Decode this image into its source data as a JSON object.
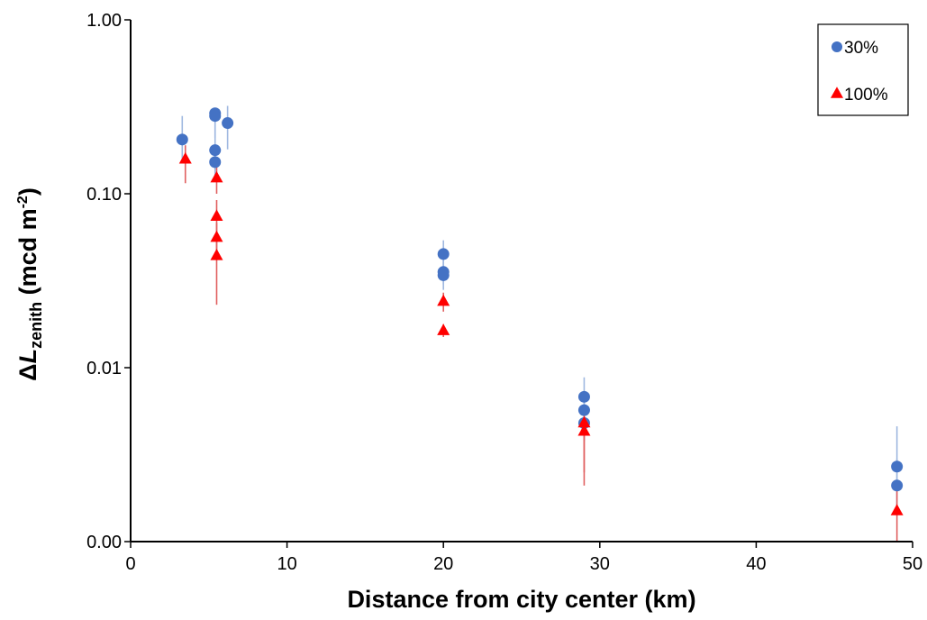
{
  "chart_data": {
    "type": "scatter",
    "title": "",
    "xlabel": "Distance from city center (km)",
    "ylabel": {
      "prefix": "Δ",
      "symbol": "L",
      "subscript": "zenith",
      "unit_open": " (mcd m",
      "unit_sup": "-2",
      "unit_close": ")"
    },
    "x_scale": "linear",
    "y_scale": "log",
    "xlim": [
      0,
      50
    ],
    "ylim": [
      0.001,
      1
    ],
    "x_ticks": [
      0,
      10,
      20,
      30,
      40,
      50
    ],
    "y_ticks": [
      {
        "value": 0.001,
        "label": "0.00"
      },
      {
        "value": 0.01,
        "label": "0.01"
      },
      {
        "value": 0.1,
        "label": "0.10"
      },
      {
        "value": 1,
        "label": "1.00"
      }
    ],
    "grid": false,
    "legend_position": "top-right",
    "series": [
      {
        "name": "30%",
        "marker": "circle",
        "color": "#4472C4",
        "error_color": "#9FB8E0",
        "points": [
          {
            "x": 3.3,
            "y": 0.205,
            "err_low": 0.15,
            "err_high": 0.28
          },
          {
            "x": 5.4,
            "y": 0.29,
            "err_low": 0.22,
            "err_high": 0.31
          },
          {
            "x": 5.4,
            "y": 0.28,
            "err_low": 0.21,
            "err_high": 0.3
          },
          {
            "x": 5.4,
            "y": 0.178,
            "err_low": 0.14,
            "err_high": 0.22
          },
          {
            "x": 5.4,
            "y": 0.152,
            "err_low": 0.12,
            "err_high": 0.19
          },
          {
            "x": 6.2,
            "y": 0.255,
            "err_low": 0.18,
            "err_high": 0.32
          },
          {
            "x": 20.0,
            "y": 0.045,
            "err_low": 0.037,
            "err_high": 0.054
          },
          {
            "x": 20.0,
            "y": 0.0355,
            "err_low": 0.03,
            "err_high": 0.043
          },
          {
            "x": 20.0,
            "y": 0.034,
            "err_low": 0.028,
            "err_high": 0.041
          },
          {
            "x": 29.0,
            "y": 0.0068,
            "err_low": 0.0055,
            "err_high": 0.0088
          },
          {
            "x": 29.0,
            "y": 0.0057,
            "err_low": 0.0046,
            "err_high": 0.007
          },
          {
            "x": 29.0,
            "y": 0.0048,
            "err_low": 0.0038,
            "err_high": 0.006
          },
          {
            "x": 49.0,
            "y": 0.0027,
            "err_low": 0.0015,
            "err_high": 0.0046
          },
          {
            "x": 49.0,
            "y": 0.0021,
            "err_low": 0.0014,
            "err_high": 0.003
          }
        ]
      },
      {
        "name": "100%",
        "marker": "triangle",
        "color": "#FF0000",
        "error_color": "#E06060",
        "points": [
          {
            "x": 3.5,
            "y": 0.158,
            "err_low": 0.115,
            "err_high": 0.19
          },
          {
            "x": 5.5,
            "y": 0.123,
            "err_low": 0.1,
            "err_high": 0.15
          },
          {
            "x": 5.5,
            "y": 0.074,
            "err_low": 0.058,
            "err_high": 0.092
          },
          {
            "x": 5.5,
            "y": 0.056,
            "err_low": 0.045,
            "err_high": 0.068
          },
          {
            "x": 5.5,
            "y": 0.044,
            "err_low": 0.023,
            "err_high": 0.055
          },
          {
            "x": 20.0,
            "y": 0.024,
            "err_low": 0.021,
            "err_high": 0.027
          },
          {
            "x": 20.0,
            "y": 0.0163,
            "err_low": 0.015,
            "err_high": 0.0178
          },
          {
            "x": 29.0,
            "y": 0.0048,
            "err_low": 0.0025,
            "err_high": 0.0056
          },
          {
            "x": 29.0,
            "y": 0.0043,
            "err_low": 0.0021,
            "err_high": 0.0051
          },
          {
            "x": 49.0,
            "y": 0.0015,
            "err_low": 0.001,
            "err_high": 0.0021
          }
        ]
      }
    ]
  }
}
